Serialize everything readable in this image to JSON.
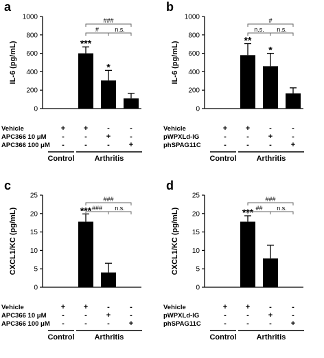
{
  "chart_data": [
    {
      "panel": "a",
      "type": "bar",
      "ylabel": "IL-6 (pg/mL)",
      "ylim": [
        0,
        1000
      ],
      "yticks": [
        0,
        200,
        400,
        600,
        800,
        1000
      ],
      "values": [
        0,
        600,
        305,
        110
      ],
      "errors": [
        0,
        70,
        110,
        55
      ],
      "bar_labels": [
        "",
        "***",
        "*",
        ""
      ],
      "brackets": [
        {
          "from": 1,
          "to": 3,
          "label": "###",
          "level": 2
        },
        {
          "from": 1,
          "to": 2,
          "label": "#",
          "level": 1
        },
        {
          "from": 2,
          "to": 3,
          "label": "n.s.",
          "level": 1
        }
      ],
      "rows": [
        {
          "label": "Vehicle",
          "signs": [
            "+",
            "+",
            "-",
            "-"
          ]
        },
        {
          "label": "APC366 10 μM",
          "signs": [
            "-",
            "-",
            "+",
            "-"
          ]
        },
        {
          "label": "APC366 100 μM",
          "signs": [
            "-",
            "-",
            "-",
            "+"
          ]
        }
      ],
      "groups": [
        {
          "label": "Control",
          "bars": [
            0
          ]
        },
        {
          "label": "Arthritis",
          "bars": [
            1,
            3
          ]
        }
      ]
    },
    {
      "panel": "b",
      "type": "bar",
      "ylabel": "IL-6 (pg/mL)",
      "ylim": [
        0,
        1000
      ],
      "yticks": [
        0,
        200,
        400,
        600,
        800,
        1000
      ],
      "values": [
        0,
        580,
        460,
        165
      ],
      "errors": [
        0,
        125,
        140,
        60
      ],
      "bar_labels": [
        "",
        "**",
        "*",
        ""
      ],
      "brackets": [
        {
          "from": 1,
          "to": 3,
          "label": "#",
          "level": 2
        },
        {
          "from": 1,
          "to": 2,
          "label": "n.s.",
          "level": 1
        },
        {
          "from": 2,
          "to": 3,
          "label": "n.s.",
          "level": 1
        }
      ],
      "rows": [
        {
          "label": "Vehicle",
          "signs": [
            "+",
            "+",
            "-",
            "-"
          ]
        },
        {
          "label": "pWPXLd-IG",
          "signs": [
            "-",
            "-",
            "+",
            "-"
          ]
        },
        {
          "label": "phSPAG11C",
          "signs": [
            "-",
            "-",
            "-",
            "+"
          ]
        }
      ],
      "groups": [
        {
          "label": "Control",
          "bars": [
            0
          ]
        },
        {
          "label": "Arthritis",
          "bars": [
            1,
            3
          ]
        }
      ]
    },
    {
      "panel": "c",
      "type": "bar",
      "ylabel": "CXCL1/KC (pg/mL)",
      "ylim": [
        0,
        25
      ],
      "yticks": [
        0,
        5,
        10,
        15,
        20,
        25
      ],
      "values": [
        0,
        17.8,
        4.0,
        0
      ],
      "errors": [
        0,
        2.1,
        2.5,
        0
      ],
      "bar_labels": [
        "",
        "***",
        "",
        ""
      ],
      "brackets": [
        {
          "from": 1,
          "to": 3,
          "label": "###",
          "level": 2
        },
        {
          "from": 1,
          "to": 2,
          "label": "###",
          "level": 1
        },
        {
          "from": 2,
          "to": 3,
          "label": "n.s.",
          "level": 1
        }
      ],
      "rows": [
        {
          "label": "Vehicle",
          "signs": [
            "+",
            "+",
            "-",
            "-"
          ]
        },
        {
          "label": "APC366 10 μM",
          "signs": [
            "-",
            "-",
            "+",
            "-"
          ]
        },
        {
          "label": "APC366 100 μM",
          "signs": [
            "-",
            "-",
            "-",
            "+"
          ]
        }
      ],
      "groups": [
        {
          "label": "Control",
          "bars": [
            0
          ]
        },
        {
          "label": "Arthritis",
          "bars": [
            1,
            3
          ]
        }
      ]
    },
    {
      "panel": "d",
      "type": "bar",
      "ylabel": "CXCL1/KC (pg/mL)",
      "ylim": [
        0,
        25
      ],
      "yticks": [
        0,
        5,
        10,
        15,
        20,
        25
      ],
      "values": [
        0,
        17.8,
        7.8,
        0
      ],
      "errors": [
        0,
        1.6,
        3.6,
        0
      ],
      "bar_labels": [
        "",
        "***",
        "",
        ""
      ],
      "brackets": [
        {
          "from": 1,
          "to": 3,
          "label": "###",
          "level": 2
        },
        {
          "from": 1,
          "to": 2,
          "label": "##",
          "level": 1
        },
        {
          "from": 2,
          "to": 3,
          "label": "n.s.",
          "level": 1
        }
      ],
      "rows": [
        {
          "label": "Vehicle",
          "signs": [
            "+",
            "+",
            "-",
            "-"
          ]
        },
        {
          "label": "pWPXLd-IG",
          "signs": [
            "-",
            "-",
            "+",
            "-"
          ]
        },
        {
          "label": "phSPAG11C",
          "signs": [
            "-",
            "-",
            "-",
            "+"
          ]
        }
      ],
      "groups": [
        {
          "label": "Control",
          "bars": [
            0
          ]
        },
        {
          "label": "Arthritis",
          "bars": [
            1,
            3
          ]
        }
      ]
    }
  ],
  "colors": {
    "bar": "#000000",
    "axis": "#000000",
    "bracket": "#666666"
  }
}
